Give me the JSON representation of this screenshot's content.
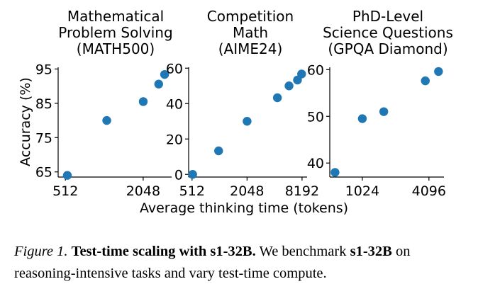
{
  "figure": {
    "shared_ylabel": "Accuracy (%)",
    "shared_xlabel": "Average thinking time (tokens)",
    "marker_color": "#1f77b4"
  },
  "chart_data": [
    {
      "type": "scatter",
      "title_lines": [
        "Mathematical",
        "Problem Solving",
        "(MATH500)"
      ],
      "xscale": "log2",
      "xlim": [
        450,
        3400
      ],
      "ylim": [
        63.5,
        95.5
      ],
      "xticks": [
        512,
        2048
      ],
      "xtick_labels": [
        "512",
        "2048"
      ],
      "yticks": [
        65,
        75,
        85,
        95
      ],
      "ytick_labels": [
        "65",
        "75",
        "85",
        "95"
      ],
      "x": [
        530,
        1070,
        2050,
        2700,
        3000
      ],
      "y": [
        64,
        80,
        85.5,
        90.6,
        93.4
      ]
    },
    {
      "type": "scatter",
      "title_lines": [
        "Competition",
        "Math",
        "(AIME24)"
      ],
      "xscale": "log2",
      "xlim": [
        470,
        9300
      ],
      "ylim": [
        -1.5,
        60.5
      ],
      "xticks": [
        512,
        2048,
        8192
      ],
      "xtick_labels": [
        "512",
        "2048",
        "8192"
      ],
      "yticks": [
        0,
        20,
        40,
        60
      ],
      "ytick_labels": [
        "0",
        "20",
        "40",
        "60"
      ],
      "x": [
        520,
        1000,
        2050,
        4400,
        5900,
        7300,
        8100
      ],
      "y": [
        0,
        13.3,
        30,
        43.3,
        50,
        53.3,
        56.7
      ]
    },
    {
      "type": "scatter",
      "title_lines": [
        "PhD-Level",
        "Science Questions",
        "(GPQA Diamond)"
      ],
      "xscale": "log2",
      "xlim": [
        520,
        5600
      ],
      "ylim": [
        37,
        60.5
      ],
      "xticks": [
        1024,
        4096
      ],
      "xtick_labels": [
        "1024",
        "4096"
      ],
      "yticks": [
        40,
        50,
        60
      ],
      "ytick_labels": [
        "40",
        "50",
        "60"
      ],
      "x": [
        580,
        1024,
        1600,
        3800,
        5000
      ],
      "y": [
        38,
        49.5,
        51,
        57.6,
        59.6
      ]
    }
  ],
  "caption": {
    "label": "Figure 1.",
    "bold_title": "Test-time scaling with s1-32B.",
    "text_1": "We benchmark",
    "bold_model": "s1-32B",
    "text_2": "on reasoning-intensive tasks and vary test-time compute."
  }
}
